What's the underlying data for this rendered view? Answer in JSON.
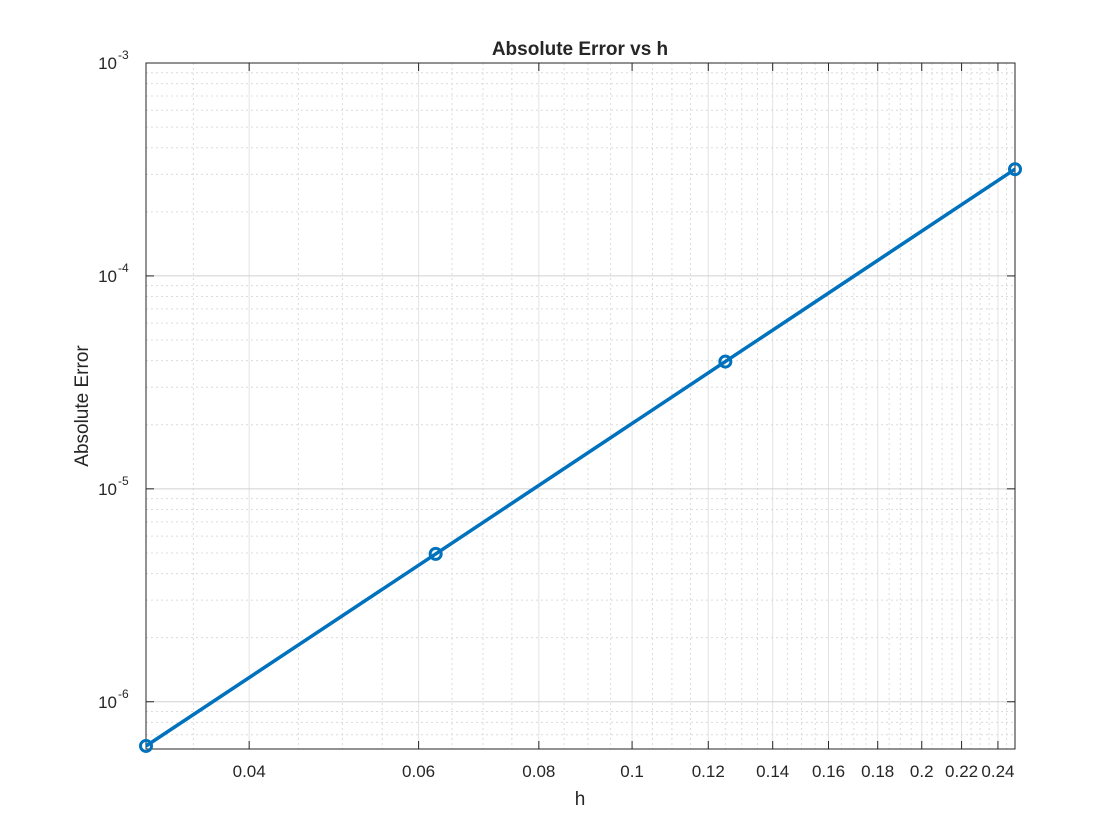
{
  "chart_data": {
    "type": "line",
    "title": "Absolute Error vs h",
    "xlabel": "h",
    "ylabel": "Absolute Error",
    "xscale": "log",
    "yscale": "log",
    "xlim": [
      0.03125,
      0.25
    ],
    "ylim": [
      6e-07,
      0.001
    ],
    "grid": "on (major and minor)",
    "x_tick_labels": [
      "0.04",
      "0.06",
      "0.08",
      "0.1",
      "0.12",
      "0.14",
      "0.16",
      "0.18",
      "0.2",
      "0.22",
      "0.24"
    ],
    "y_tick_labels": [
      {
        "base": "10",
        "exp": "-6"
      },
      {
        "base": "10",
        "exp": "-5"
      },
      {
        "base": "10",
        "exp": "-4"
      },
      {
        "base": "10",
        "exp": "-3"
      }
    ],
    "series": [
      {
        "x": [
          0.03125,
          0.0625,
          0.125,
          0.25
        ],
        "y": [
          6.2e-07,
          4.95e-06,
          3.96e-05,
          0.000317
        ],
        "marker": "circle",
        "color": "#0072BD"
      }
    ]
  }
}
